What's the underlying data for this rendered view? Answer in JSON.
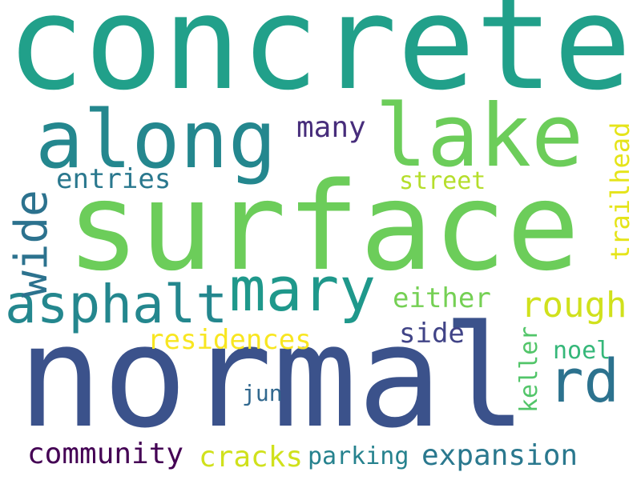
{
  "words": [
    {
      "text": "concrete",
      "color": "#21a08a"
    },
    {
      "text": "surface",
      "color": "#6ccd5a"
    },
    {
      "text": "normal",
      "color": "#3b528b"
    },
    {
      "text": "along",
      "color": "#24878e"
    },
    {
      "text": "lake",
      "color": "#6ccd5a"
    },
    {
      "text": "mary",
      "color": "#1f988b"
    },
    {
      "text": "asphalt",
      "color": "#24878e"
    },
    {
      "text": "wide",
      "color": "#2c728e"
    },
    {
      "text": "rd",
      "color": "#2c728e"
    },
    {
      "text": "many",
      "color": "#472d7b"
    },
    {
      "text": "entries",
      "color": "#2a788e"
    },
    {
      "text": "street",
      "color": "#b5de2b"
    },
    {
      "text": "trailhead",
      "color": "#e5e419"
    },
    {
      "text": "rough",
      "color": "#d0e11c"
    },
    {
      "text": "either",
      "color": "#75d054"
    },
    {
      "text": "residences",
      "color": "#f8e621"
    },
    {
      "text": "side",
      "color": "#414487"
    },
    {
      "text": "keller",
      "color": "#52c569"
    },
    {
      "text": "noel",
      "color": "#35b779"
    },
    {
      "text": "jun",
      "color": "#31688e"
    },
    {
      "text": "community",
      "color": "#440154"
    },
    {
      "text": "cracks",
      "color": "#d0e11c"
    },
    {
      "text": "parking",
      "color": "#26828e"
    },
    {
      "text": "expansion",
      "color": "#2a788e"
    }
  ]
}
